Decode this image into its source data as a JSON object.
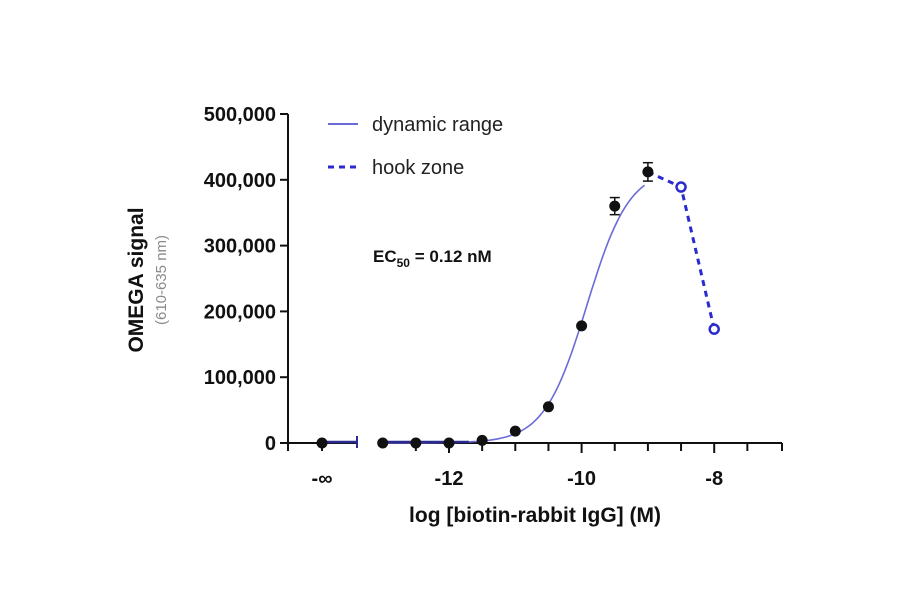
{
  "chart_data": {
    "type": "line",
    "title": "",
    "xlabel": "log [biotin-rabbit IgG] (M)",
    "ylabel": "OMEGA signal",
    "ylabel_sub": "(610-635 nm)",
    "xlim": [
      -13.5,
      -7
    ],
    "ylim": [
      0,
      500000
    ],
    "grid": false,
    "legend_position": "top-left inside",
    "x_tick_labels": [
      "-∞",
      "-12",
      "-10",
      "-8"
    ],
    "y_tick_labels": [
      "0",
      "100,000",
      "200,000",
      "300,000",
      "400,000",
      "500,000"
    ],
    "annotation": {
      "text_main": "EC",
      "text_sub": "50",
      "text_rest": " = 0.12 nM"
    },
    "series": [
      {
        "name": "dynamic range",
        "style": "solid fitted sigmoid, filled black markers with error bars",
        "color": "#6666dd",
        "x": [
          "-inf",
          -13,
          -12.5,
          -12,
          -11.5,
          -11,
          -10.5,
          -10,
          -9.5,
          -9
        ],
        "values": [
          0,
          0,
          0,
          0,
          4000,
          18000,
          55000,
          178000,
          360000,
          412000
        ]
      },
      {
        "name": "hook zone",
        "style": "dashed line, open blue markers",
        "color": "#2a2ad0",
        "x": [
          -9,
          -8.5,
          -8
        ],
        "values": [
          412000,
          389000,
          173000
        ]
      }
    ]
  },
  "legend": {
    "items": [
      {
        "label": "dynamic range"
      },
      {
        "label": "hook zone"
      }
    ]
  }
}
